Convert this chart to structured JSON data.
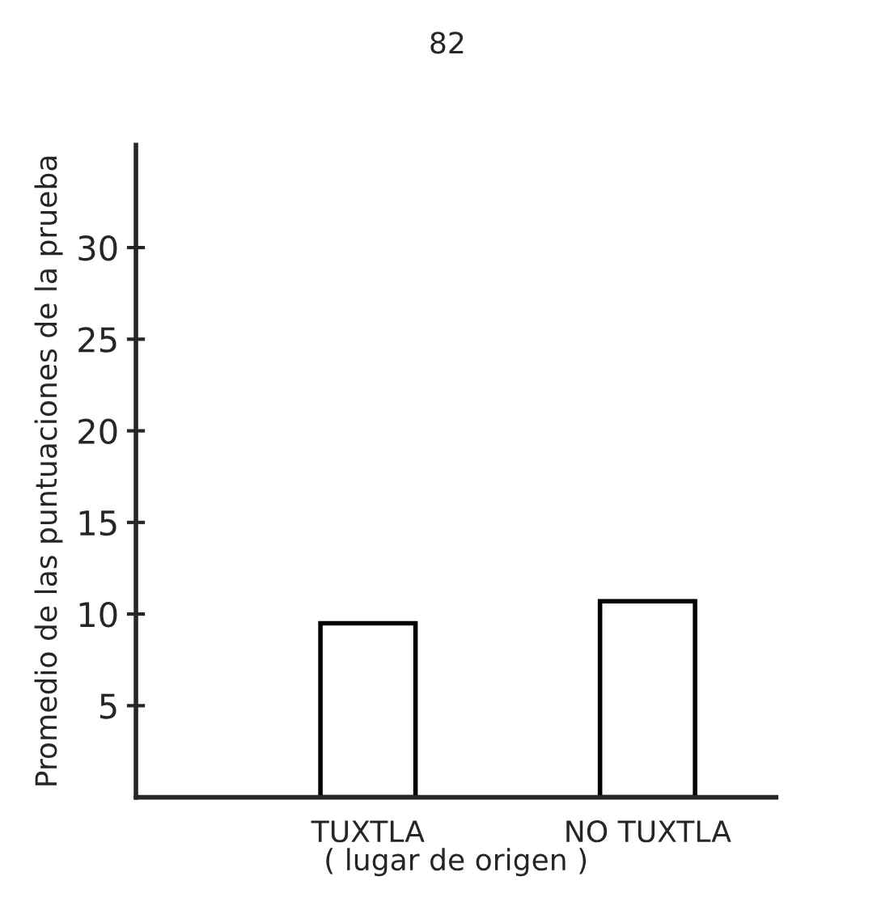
{
  "chart_data": {
    "type": "bar",
    "categories": [
      "TUXTLA",
      "NO TUXTLA"
    ],
    "values": [
      9.5,
      10.7
    ],
    "color": "#ffffff",
    "ylim": [
      0,
      35.6
    ],
    "yticks": [
      5,
      10,
      15,
      20,
      25,
      30
    ],
    "xlabel": "( lugar de origen )",
    "ylabel": "Promedio de las puntuaciones de la prueba",
    "annotations": [
      "82"
    ],
    "grid": false,
    "legend": false
  }
}
